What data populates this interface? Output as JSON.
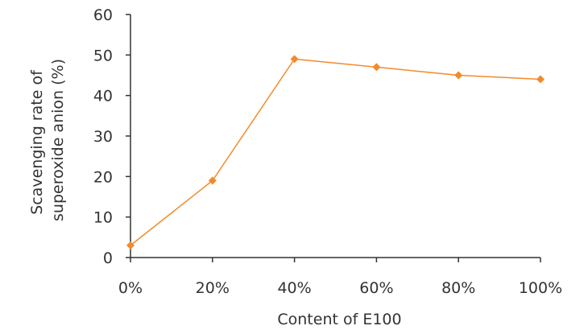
{
  "chart_data": {
    "type": "line",
    "title": "",
    "xlabel": "Content of E100",
    "ylabel_lines": [
      "Scavenging rate of",
      "superoxide anion (%)"
    ],
    "categories": [
      "0%",
      "20%",
      "40%",
      "60%",
      "80%",
      "100%"
    ],
    "series": [
      {
        "values": [
          3,
          19,
          49,
          47,
          45,
          44
        ],
        "color": "#F28A2A",
        "marker": "diamond"
      }
    ],
    "ylim": [
      0,
      60
    ],
    "yticks": [
      0,
      10,
      20,
      30,
      40,
      50,
      60
    ],
    "grid": false,
    "legend": "none"
  }
}
